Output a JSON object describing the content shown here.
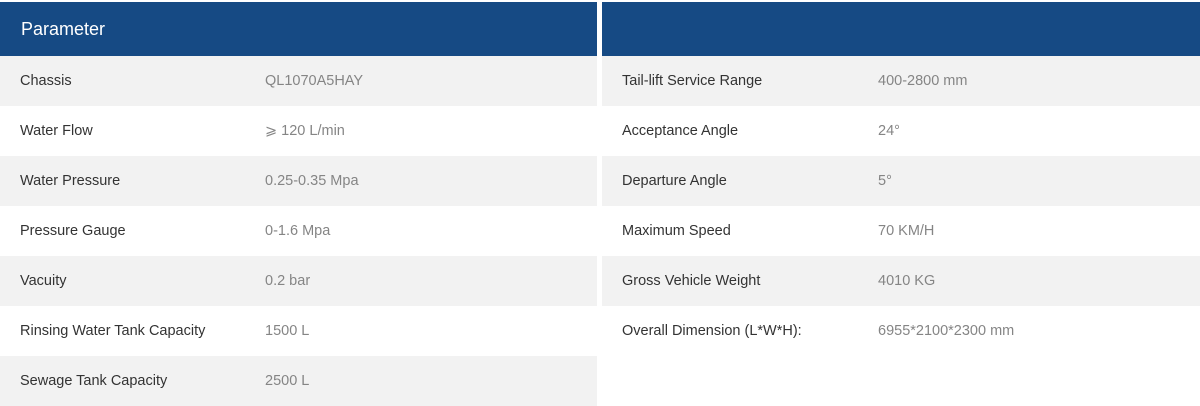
{
  "header": {
    "left_title": "Parameter",
    "right_title": ""
  },
  "left_rows": [
    {
      "label": "Chassis",
      "value": "QL1070A5HAY"
    },
    {
      "label": "Water Flow",
      "value": "⩾ 120 L/min"
    },
    {
      "label": "Water Pressure",
      "value": "0.25-0.35 Mpa"
    },
    {
      "label": "Pressure Gauge",
      "value": "0-1.6 Mpa"
    },
    {
      "label": "Vacuity",
      "value": "0.2 bar"
    },
    {
      "label": "Rinsing Water Tank Capacity",
      "value": "1500 L"
    },
    {
      "label": "Sewage Tank Capacity",
      "value": "2500 L"
    }
  ],
  "right_rows": [
    {
      "label": "Tail-lift Service Range",
      "value": "400-2800 mm"
    },
    {
      "label": "Acceptance Angle",
      "value": "24°"
    },
    {
      "label": "Departure Angle",
      "value": "5°"
    },
    {
      "label": "Maximum Speed",
      "value": "70 KM/H"
    },
    {
      "label": "Gross Vehicle Weight",
      "value": "4010 KG"
    },
    {
      "label": "Overall Dimension (L*W*H):",
      "value": "6955*2100*2300 mm"
    }
  ],
  "colors": {
    "header_bg": "#164a84",
    "row_shade": "#f2f2f2",
    "label": "#333333",
    "value": "#858585"
  }
}
